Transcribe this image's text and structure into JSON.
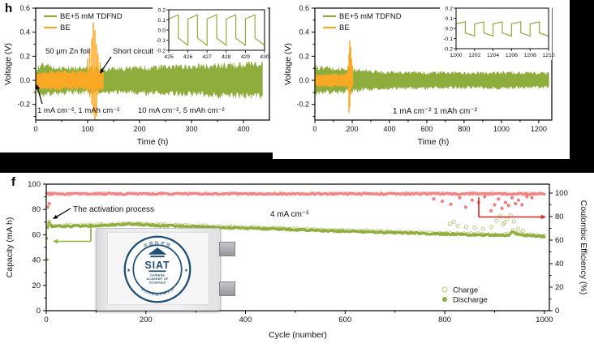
{
  "colors": {
    "green": "#8FAD3C",
    "green_light": "#B9CD7E",
    "orange": "#F9A825",
    "pink": "#F58282",
    "pink_dark": "#EE6F6F",
    "red": "#DD2222",
    "navy": "#1F4E79",
    "black": "#000000"
  },
  "chart_data": [
    {
      "id": "panel_h",
      "type": "line",
      "letter": "h",
      "xlabel": "Time (h)",
      "ylabel": "Voltage (V)",
      "xlim": [
        0,
        450
      ],
      "ylim": [
        -0.33,
        0.6
      ],
      "xticks": [
        0,
        100,
        200,
        300,
        400
      ],
      "x_minor": 50,
      "yticks": [
        -0.2,
        0.0,
        0.2,
        0.4,
        0.6
      ],
      "y_minor": [
        -0.3,
        -0.1,
        0.1,
        0.3,
        0.5
      ],
      "legend": [
        "BE+5 mM TDFND",
        "BE"
      ],
      "annotations": {
        "zn_foil": "50 μm Zn foil",
        "short_circuit": "Short circuit",
        "cond1": "1 mA cm⁻², 1 mAh cm⁻²",
        "cond2": "10 mA cm⁻², 5 mAh cm⁻²"
      },
      "series": [
        {
          "name": "BE+5 mM TDFND",
          "range": [
            0,
            437
          ],
          "envelope": [
            [
              0,
              0.04
            ],
            [
              3,
              0.09
            ],
            [
              8,
              0.13
            ],
            [
              18,
              0.12
            ],
            [
              35,
              0.105
            ],
            [
              70,
              0.1
            ],
            [
              110,
              0.1
            ],
            [
              135,
              0.095
            ],
            [
              180,
              0.1
            ],
            [
              240,
              0.108
            ],
            [
              300,
              0.115
            ],
            [
              360,
              0.122
            ],
            [
              400,
              0.128
            ],
            [
              437,
              0.133
            ]
          ]
        },
        {
          "name": "BE",
          "range": [
            0,
            131
          ],
          "envelope": [
            [
              0,
              0.045
            ],
            [
              8,
              0.06
            ],
            [
              25,
              0.068
            ],
            [
              60,
              0.07
            ],
            [
              90,
              0.072
            ],
            [
              100,
              0.08
            ],
            [
              108,
              0.09
            ],
            [
              116,
              0.085
            ],
            [
              124,
              0.075
            ],
            [
              131,
              0.07
            ]
          ],
          "spikes": [
            [
              100,
              0.18,
              -0.1
            ],
            [
              104,
              0.26,
              -0.14
            ],
            [
              108,
              0.35,
              -0.2
            ],
            [
              111,
              0.48,
              -0.28
            ],
            [
              114,
              0.42,
              -0.33
            ],
            [
              117,
              0.3,
              -0.3
            ],
            [
              120,
              0.22,
              -0.12
            ],
            [
              124,
              0.15,
              -0.08
            ]
          ]
        }
      ],
      "inset": {
        "xlim": [
          425,
          430
        ],
        "xticks": [
          425,
          426,
          427,
          428,
          429,
          430
        ],
        "yticks": [
          -0.2,
          -0.1,
          0.0,
          0.1,
          0.2
        ],
        "period": 1,
        "hi": [
          0.11,
          0.15
        ],
        "lo": [
          -0.08,
          -0.15
        ]
      }
    },
    {
      "id": "panel_right",
      "type": "line",
      "letter": "",
      "xlabel": "Time (h)",
      "ylabel": "Voltage (V)",
      "xlim": [
        0,
        1270
      ],
      "ylim": [
        -0.33,
        0.6
      ],
      "xticks": [
        0,
        200,
        400,
        600,
        800,
        1000,
        1200
      ],
      "x_minor": 100,
      "yticks": [
        -0.2,
        0.0,
        0.2,
        0.4,
        0.6
      ],
      "y_minor": [
        -0.3,
        -0.1,
        0.1,
        0.3,
        0.5
      ],
      "legend": [
        "BE+5 mM TDFND",
        "BE"
      ],
      "annotations": {
        "cond": "1 mA cm⁻²  1 mAh cm⁻²"
      },
      "series": [
        {
          "name": "BE+5 mM TDFND",
          "range": [
            0,
            1255
          ],
          "envelope": [
            [
              0,
              0.115
            ],
            [
              15,
              0.105
            ],
            [
              50,
              0.1
            ],
            [
              120,
              0.095
            ],
            [
              200,
              0.088
            ],
            [
              260,
              0.078
            ],
            [
              330,
              0.071
            ],
            [
              420,
              0.067
            ],
            [
              520,
              0.064
            ],
            [
              620,
              0.063
            ],
            [
              720,
              0.061
            ],
            [
              820,
              0.06
            ],
            [
              920,
              0.062
            ],
            [
              1020,
              0.064
            ],
            [
              1120,
              0.06
            ],
            [
              1255,
              0.059
            ]
          ]
        },
        {
          "name": "BE",
          "range": [
            0,
            205
          ],
          "envelope": [
            [
              0,
              0.042
            ],
            [
              40,
              0.046
            ],
            [
              100,
              0.048
            ],
            [
              150,
              0.05
            ],
            [
              175,
              0.055
            ],
            [
              190,
              0.06
            ],
            [
              205,
              0.05
            ]
          ],
          "spikes": [
            [
              178,
              0.12,
              -0.08
            ],
            [
              183,
              0.22,
              -0.27
            ],
            [
              187,
              0.33,
              -0.22
            ],
            [
              192,
              0.28,
              -0.12
            ],
            [
              197,
              0.18,
              -0.06
            ],
            [
              202,
              0.12,
              -0.04
            ]
          ]
        }
      ],
      "inset": {
        "xlim": [
          1200,
          1210
        ],
        "xticks": [
          1200,
          1202,
          1204,
          1206,
          1208,
          1210
        ],
        "yticks": [
          -0.2,
          -0.1,
          0.0,
          0.1,
          0.2
        ],
        "period": 2,
        "hi": [
          0.045,
          0.065
        ],
        "lo": [
          -0.045,
          -0.075
        ]
      }
    },
    {
      "id": "panel_f",
      "type": "scatter",
      "letter": "f",
      "xlabel": "Cycle (number)",
      "ylabel_left": "Capacity (mA h)",
      "ylabel_right": "Coulombic Efficiency (%)",
      "xlim": [
        0,
        1010
      ],
      "xticks": [
        0,
        200,
        400,
        600,
        800,
        1000
      ],
      "x_minor": 100,
      "yticks_left": [
        0,
        20,
        40,
        60,
        80,
        100
      ],
      "yticks_right": [
        0,
        20,
        40,
        60,
        80,
        100
      ],
      "y_minor_step": 20,
      "annotations": {
        "activation": "The activation process",
        "rate": "4 mA cm⁻²"
      },
      "legend": [
        {
          "label": "Charge",
          "marker": "open"
        },
        {
          "label": "Discharge",
          "marker": "filled"
        }
      ],
      "capacity_keypoints": [
        [
          1,
          57.5
        ],
        [
          2,
          40
        ],
        [
          3,
          65
        ],
        [
          4,
          68
        ],
        [
          6,
          70
        ],
        [
          10,
          66.5
        ],
        [
          40,
          66.8
        ],
        [
          90,
          67
        ],
        [
          150,
          68
        ],
        [
          165,
          68.6
        ],
        [
          220,
          67.4
        ],
        [
          300,
          66.4
        ],
        [
          400,
          65.2
        ],
        [
          480,
          64.3
        ],
        [
          560,
          63.2
        ],
        [
          640,
          62.3
        ],
        [
          720,
          61.4
        ],
        [
          800,
          60.6
        ],
        [
          860,
          60
        ],
        [
          900,
          59.6
        ],
        [
          928,
          59.3
        ],
        [
          936,
          62.8
        ],
        [
          944,
          60.8
        ],
        [
          960,
          59.4
        ],
        [
          1000,
          58.6
        ]
      ],
      "charge_outliers": [
        [
          6,
          69.5
        ],
        [
          810,
          68.5
        ],
        [
          818,
          70.2
        ],
        [
          826,
          67.2
        ],
        [
          843,
          66.1
        ],
        [
          860,
          65.6
        ],
        [
          877,
          64.7
        ],
        [
          894,
          66.2
        ],
        [
          904,
          71
        ],
        [
          911,
          74.6
        ],
        [
          917,
          68.2
        ],
        [
          920,
          69.5
        ],
        [
          925,
          72.4
        ],
        [
          932,
          75.4
        ],
        [
          939,
          70.6
        ],
        [
          947,
          64.8
        ],
        [
          957,
          63.2
        ]
      ],
      "ce_base": 99.4,
      "ce_outliers": [
        [
          3,
          88
        ],
        [
          6,
          91
        ],
        [
          778,
          95
        ],
        [
          795,
          93
        ],
        [
          812,
          90.5
        ],
        [
          830,
          96
        ],
        [
          842,
          88
        ],
        [
          855,
          94
        ],
        [
          868,
          92
        ],
        [
          880,
          97
        ],
        [
          893,
          85
        ],
        [
          900,
          90
        ],
        [
          908,
          95
        ],
        [
          915,
          87
        ],
        [
          922,
          92
        ],
        [
          928,
          89.5
        ],
        [
          935,
          96
        ],
        [
          942,
          91
        ],
        [
          948,
          94
        ],
        [
          955,
          90
        ],
        [
          965,
          97
        ],
        [
          975,
          96
        ]
      ]
    }
  ],
  "photo": {
    "siat": "SIAT",
    "caption_lines": [
      "CHINESE",
      "ACADEMY OF",
      "SCIENCES"
    ],
    "ring_top": "中国科学院",
    "ring_bottom": "深圳先进技术研究院",
    "star": "★"
  }
}
